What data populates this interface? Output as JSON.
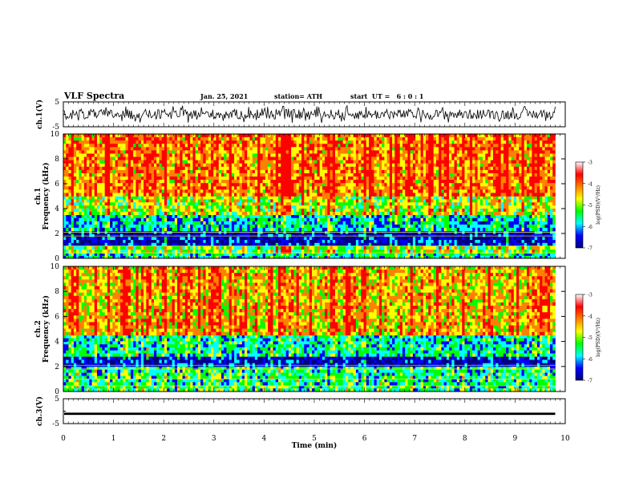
{
  "header": {
    "title": "VLF Spectra",
    "date": "Jan. 25, 2021",
    "station": "station= ATH",
    "start": "start  UT =   6 : 0 : 1"
  },
  "colorbar": {
    "label": "log(PSD)(V²/Hz)",
    "ticks": [
      "-3",
      "-4",
      "-5",
      "-6",
      "-7"
    ],
    "colors": [
      "#ff0000",
      "#ff8000",
      "#ffff00",
      "#00ff00",
      "#00ffff",
      "#0000ff",
      "#000080"
    ]
  },
  "chart_data": [
    {
      "type": "line",
      "title": "",
      "ylabel": "ch.1(V)",
      "xlabel": "",
      "xlim": [
        0,
        10
      ],
      "ylim": [
        -5,
        5
      ],
      "yticks": [
        "5",
        "-5"
      ],
      "series": [
        {
          "values": "broadband noise, roughly -3.5 to 3.5 V over 0–9.8 min"
        }
      ]
    },
    {
      "type": "heatmap",
      "title": "",
      "ylabel": "ch.1  Frequency (kHz)",
      "xlim": [
        0,
        10
      ],
      "ylim": [
        0,
        10
      ],
      "yticks": [
        "0",
        "2",
        "4",
        "6",
        "8",
        "10"
      ],
      "data_extent_minutes": 9.8,
      "bands": [
        {
          "kHz": [
            0,
            0.4
          ],
          "level": -5.5
        },
        {
          "kHz": [
            0.4,
            1.0
          ],
          "level": -5.0
        },
        {
          "kHz": [
            1.0,
            2.2
          ],
          "level": -6.5
        },
        {
          "kHz": [
            2.2,
            3.5
          ],
          "level": -5.7
        },
        {
          "kHz": [
            3.5,
            5.0
          ],
          "level": -4.8
        },
        {
          "kHz": [
            5.0,
            10.0
          ],
          "level": -4.0
        }
      ]
    },
    {
      "type": "heatmap",
      "title": "",
      "ylabel": "ch.2  Frequency (kHz)",
      "xlim": [
        0,
        10
      ],
      "ylim": [
        0,
        10
      ],
      "yticks": [
        "0",
        "2",
        "4",
        "6",
        "8",
        "10"
      ],
      "data_extent_minutes": 9.8,
      "bands": [
        {
          "kHz": [
            0,
            0.5
          ],
          "level": -5.3
        },
        {
          "kHz": [
            0.5,
            2.0
          ],
          "level": -5.4
        },
        {
          "kHz": [
            2.0,
            2.8
          ],
          "level": -6.5
        },
        {
          "kHz": [
            2.8,
            4.5
          ],
          "level": -5.5
        },
        {
          "kHz": [
            4.5,
            10.0
          ],
          "level": -4.3
        }
      ]
    },
    {
      "type": "line",
      "title": "",
      "ylabel": "ch.3(V)",
      "xlabel": "Time  (min)",
      "xlim": [
        0,
        10
      ],
      "ylim": [
        -5,
        5
      ],
      "yticks": [
        "5",
        "-5"
      ],
      "xticks": [
        "0",
        "1",
        "2",
        "3",
        "4",
        "5",
        "6",
        "7",
        "8",
        "9",
        "10"
      ],
      "series": [
        {
          "values": "near-constant around -1 V over 0–9.8 min"
        }
      ]
    }
  ]
}
